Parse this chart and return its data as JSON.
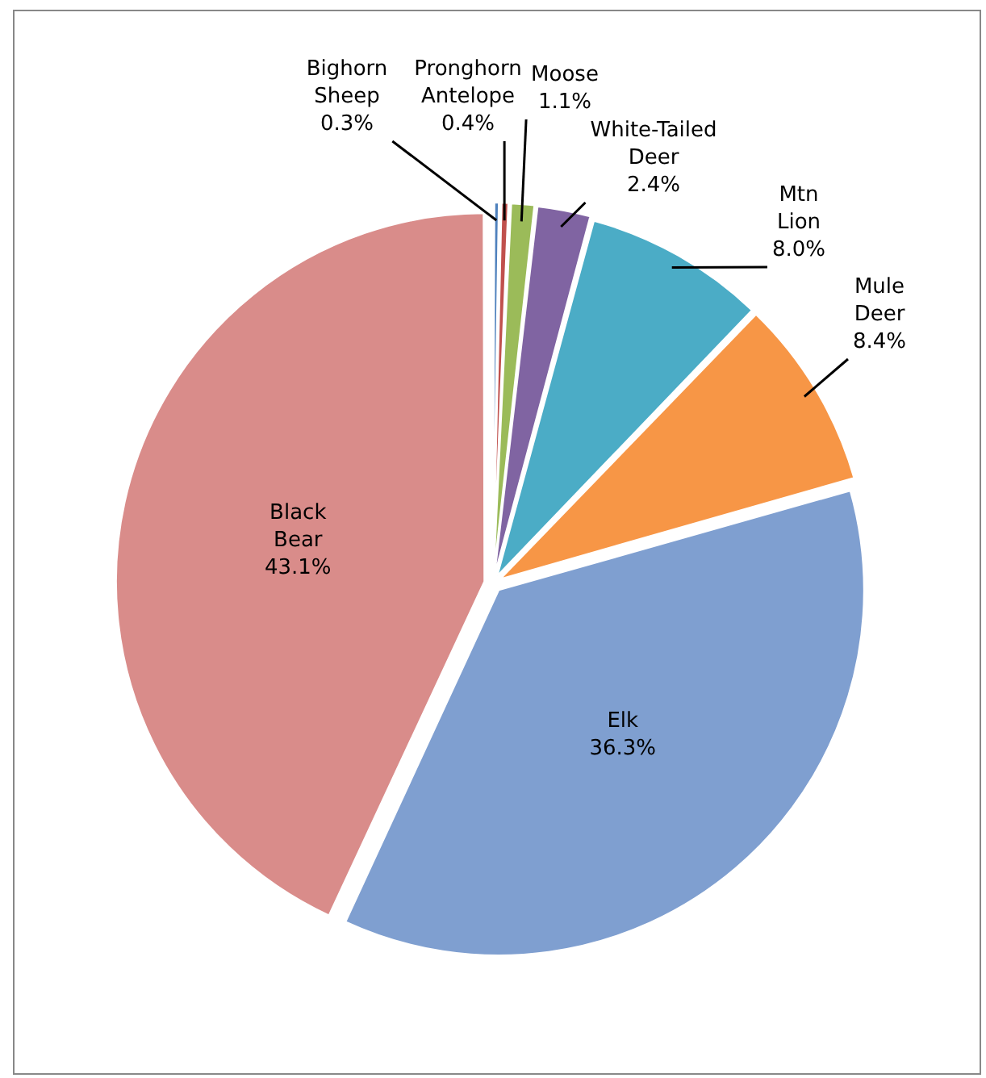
{
  "chart_data": {
    "type": "pie",
    "categories": [
      "Bighorn Sheep",
      "Pronghorn Antelope",
      "Moose",
      "White-Tailed Deer",
      "Mtn Lion",
      "Mule Deer",
      "Elk",
      "Black Bear"
    ],
    "values": [
      0.3,
      0.4,
      1.1,
      2.4,
      8.0,
      8.4,
      36.3,
      43.1
    ],
    "value_labels": [
      "0.3%",
      "0.4%",
      "1.1%",
      "2.4%",
      "8.0%",
      "8.4%",
      "36.3%",
      "43.1%"
    ],
    "colors": [
      "#4f81bd",
      "#c0504d",
      "#9bbb59",
      "#8064a2",
      "#4bacc6",
      "#f79646",
      "#7f9fd0",
      "#d98c8a"
    ],
    "legend": false
  }
}
